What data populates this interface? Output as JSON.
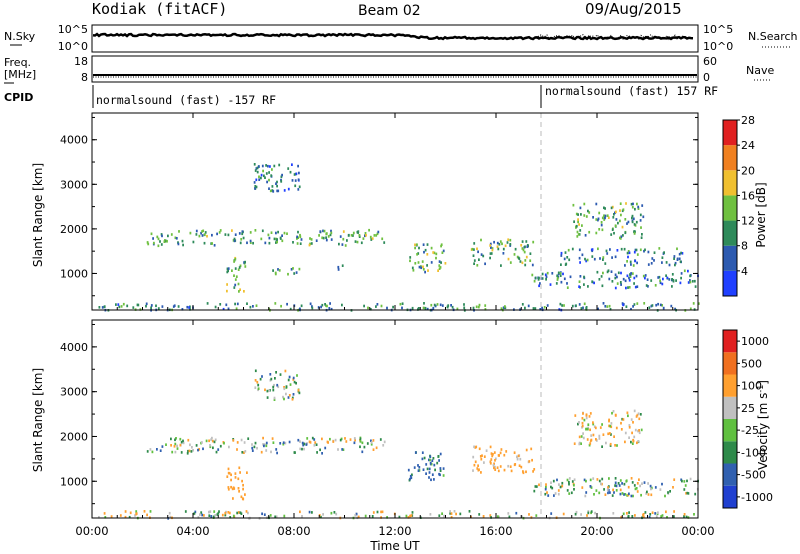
{
  "header": {
    "station": "Kodiak (fitACF)",
    "beam": "Beam 02",
    "date": "09/Aug/2015"
  },
  "top_panels": {
    "nsky_label": "N.Sky",
    "nsearch_label": "N.Search",
    "noise_ticks": [
      "10^5",
      "10^0"
    ],
    "freq_label": "Freq.",
    "freq_unit": "[MHz]",
    "freq_ticks": [
      "18",
      "8"
    ],
    "nave_ticks": [
      "60",
      "0"
    ],
    "nave_label": "Nave",
    "cpid_label": "CPID",
    "cpid_left": "normalsound (fast) -157 RF",
    "cpid_right": "normalsound (fast) 157 RF"
  },
  "x_axis": {
    "label": "Time UT",
    "ticks": [
      "00:00",
      "04:00",
      "08:00",
      "12:00",
      "16:00",
      "20:00",
      "00:00"
    ]
  },
  "y_axis": {
    "label": "Slant Range [km]",
    "ticks": [
      "1000",
      "2000",
      "3000",
      "4000"
    ]
  },
  "power_colorbar": {
    "label": "Power [dB]",
    "ticks": [
      "4",
      "8",
      "12",
      "16",
      "20",
      "24",
      "28"
    ],
    "colors": [
      "#2040ff",
      "#2c5ab0",
      "#2e8a5a",
      "#6fc040",
      "#f0c030",
      "#f08020",
      "#e02020"
    ]
  },
  "velocity_colorbar": {
    "label": "Velocity [m s",
    "label_sup": "-1",
    "label_end": "]",
    "ticks": [
      "1000",
      "500",
      "100",
      "25",
      "-25",
      "-100",
      "-500",
      "-1000"
    ],
    "colors": [
      "#2040d0",
      "#3060b0",
      "#2e8a4a",
      "#60c040",
      "#c0c0c0",
      "#ffa030",
      "#f07020",
      "#e02020"
    ]
  },
  "chart_data": [
    {
      "type": "heatmap",
      "title": "Power [dB]",
      "xlabel": "Time UT",
      "ylabel": "Slant Range [km]",
      "xlim": [
        0,
        24
      ],
      "ylim": [
        180,
        4600
      ],
      "zlim": [
        0,
        30
      ],
      "blobs": [
        {
          "t": [
            2.1,
            11.6
          ],
          "r": [
            1650,
            2000
          ],
          "level": 12
        },
        {
          "t": [
            5.3,
            6.1
          ],
          "r": [
            600,
            1400
          ],
          "level": 13
        },
        {
          "t": [
            6.4,
            8.2
          ],
          "r": [
            2850,
            3500
          ],
          "level": 8
        },
        {
          "t": [
            7.0,
            8.2
          ],
          "r": [
            1000,
            1150
          ],
          "level": 10
        },
        {
          "t": [
            9.7,
            10.2
          ],
          "r": [
            1000,
            1300
          ],
          "level": 10
        },
        {
          "t": [
            12.5,
            14.0
          ],
          "r": [
            1050,
            1700
          ],
          "level": 12
        },
        {
          "t": [
            15.0,
            17.5
          ],
          "r": [
            1200,
            1800
          ],
          "level": 13
        },
        {
          "t": [
            17.4,
            24.0
          ],
          "r": [
            700,
            1100
          ],
          "level": 8
        },
        {
          "t": [
            18.4,
            23.4
          ],
          "r": [
            1200,
            1600
          ],
          "level": 9
        },
        {
          "t": [
            19.0,
            21.8
          ],
          "r": [
            1800,
            2600
          ],
          "level": 12
        },
        {
          "t": [
            0.2,
            24.0
          ],
          "r": [
            200,
            360
          ],
          "level": 10
        }
      ]
    },
    {
      "type": "heatmap",
      "title": "Velocity [m s-1]",
      "xlabel": "Time UT",
      "ylabel": "Slant Range [km]",
      "xlim": [
        0,
        24
      ],
      "ylim": [
        180,
        4600
      ],
      "zlim": [
        -1000,
        1000
      ],
      "blobs": [
        {
          "t": [
            2.1,
            11.6
          ],
          "r": [
            1650,
            2000
          ],
          "level": 0
        },
        {
          "t": [
            5.3,
            6.1
          ],
          "r": [
            600,
            1400
          ],
          "level": -300
        },
        {
          "t": [
            6.4,
            8.2
          ],
          "r": [
            2850,
            3500
          ],
          "level": 0
        },
        {
          "t": [
            12.5,
            14.0
          ],
          "r": [
            1050,
            1700
          ],
          "level": 150
        },
        {
          "t": [
            15.0,
            17.5
          ],
          "r": [
            1200,
            1800
          ],
          "level": -200
        },
        {
          "t": [
            17.4,
            24.0
          ],
          "r": [
            700,
            1100
          ],
          "level": 0
        },
        {
          "t": [
            19.0,
            21.8
          ],
          "r": [
            1800,
            2600
          ],
          "level": -100
        },
        {
          "t": [
            0.2,
            24.0
          ],
          "r": [
            200,
            360
          ],
          "level": -30
        }
      ]
    }
  ]
}
